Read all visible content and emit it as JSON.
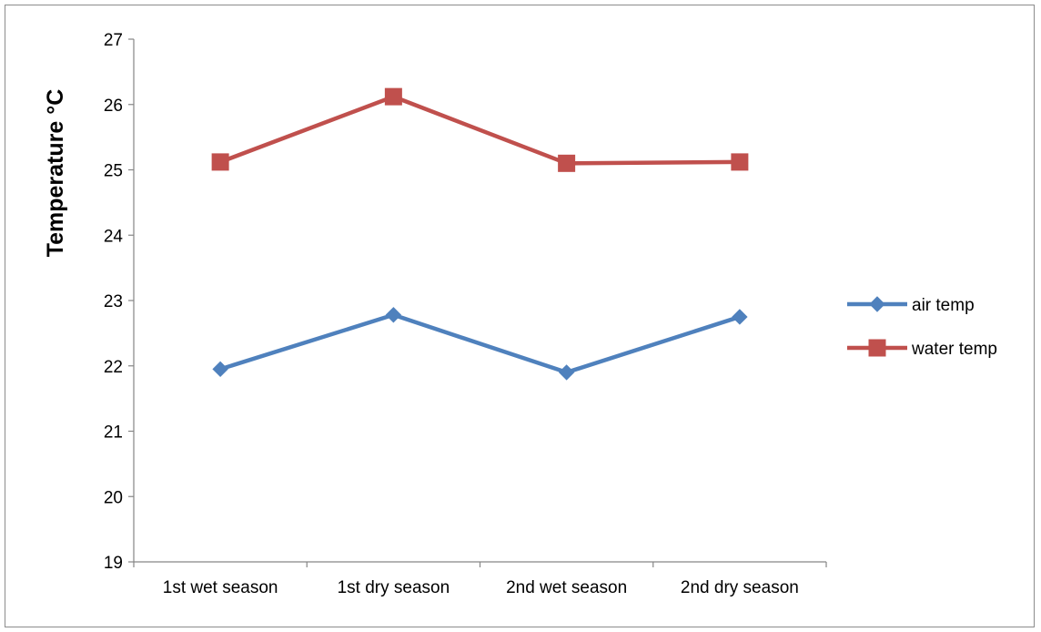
{
  "chart_data": {
    "type": "line",
    "title": "",
    "xlabel": "",
    "ylabel": "Temperature °C",
    "ylim": [
      19,
      27
    ],
    "yticks": [
      19,
      20,
      21,
      22,
      23,
      24,
      25,
      26,
      27
    ],
    "categories": [
      "1st wet season",
      "1st dry season",
      "2nd wet season",
      "2nd dry season"
    ],
    "grid": false,
    "legend_position": "right",
    "series": [
      {
        "name": "air temp",
        "values": [
          21.95,
          22.78,
          21.9,
          22.75
        ],
        "color": "#4f81bd",
        "marker": "diamond"
      },
      {
        "name": "water temp",
        "values": [
          25.12,
          26.12,
          25.1,
          25.12
        ],
        "color": "#c0504d",
        "marker": "square"
      }
    ]
  }
}
